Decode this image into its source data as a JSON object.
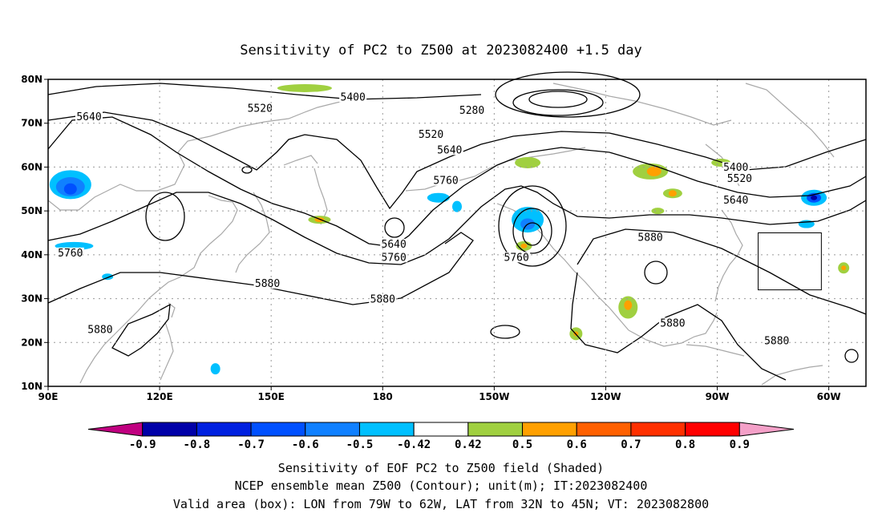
{
  "title": "Sensitivity of PC2 to Z500 at 2023082400 +1.5 day",
  "lat_ticks": [
    "80N",
    "70N",
    "60N",
    "50N",
    "40N",
    "30N",
    "20N",
    "10N"
  ],
  "lon_ticks": [
    "90E",
    "120E",
    "150E",
    "180",
    "150W",
    "120W",
    "90W",
    "60W"
  ],
  "contour_labels": [
    {
      "text": "5400",
      "lon": 172,
      "lat": 75.5
    },
    {
      "text": "5280",
      "lon": 204,
      "lat": 72.5
    },
    {
      "text": "5520",
      "lon": 147,
      "lat": 73
    },
    {
      "text": "5520",
      "lon": 193,
      "lat": 67
    },
    {
      "text": "5520",
      "lon": 276,
      "lat": 57
    },
    {
      "text": "5640",
      "lon": 101,
      "lat": 71
    },
    {
      "text": "5640",
      "lon": 198,
      "lat": 63.5
    },
    {
      "text": "5640",
      "lon": 275,
      "lat": 52
    },
    {
      "text": "5400",
      "lon": 275,
      "lat": 59.5
    },
    {
      "text": "5760",
      "lon": 197,
      "lat": 56.5
    },
    {
      "text": "5760",
      "lon": 96,
      "lat": 40
    },
    {
      "text": "5640",
      "lon": 183,
      "lat": 42
    },
    {
      "text": "5760",
      "lon": 183,
      "lat": 39
    },
    {
      "text": "5760",
      "lon": 216,
      "lat": 39
    },
    {
      "text": "5880",
      "lon": 149,
      "lat": 33
    },
    {
      "text": "5880",
      "lon": 180,
      "lat": 29.5
    },
    {
      "text": "5880",
      "lon": 252,
      "lat": 43.5
    },
    {
      "text": "5880",
      "lon": 104,
      "lat": 22.5
    },
    {
      "text": "5880",
      "lon": 258,
      "lat": 24
    },
    {
      "text": "5880",
      "lon": 286,
      "lat": 20
    }
  ],
  "valid_box": {
    "lon_min": 281,
    "lon_max": 298,
    "lat_min": 32,
    "lat_max": 45
  },
  "colorbar": {
    "labels": [
      "-0.9",
      "-0.8",
      "-0.7",
      "-0.6",
      "-0.5",
      "-0.42",
      "0.42",
      "0.5",
      "0.6",
      "0.7",
      "0.8",
      "0.9"
    ],
    "colors": [
      "#c00080",
      "#0000a8",
      "#0020e0",
      "#0050ff",
      "#1080ff",
      "#00c0ff",
      "#ffffff",
      "#a0d040",
      "#ffa000",
      "#ff6000",
      "#ff3000",
      "#ff0000",
      "#f4a0c8"
    ]
  },
  "footer": {
    "line1": "Sensitivity of EOF PC2 to Z500 field (Shaded)",
    "line2": "NCEP ensemble mean Z500 (Contour); unit(m); IT:2023082400",
    "line3": "Valid area (box): LON from 79W to 62W, LAT from 32N to 45N; VT: 2023082800"
  }
}
